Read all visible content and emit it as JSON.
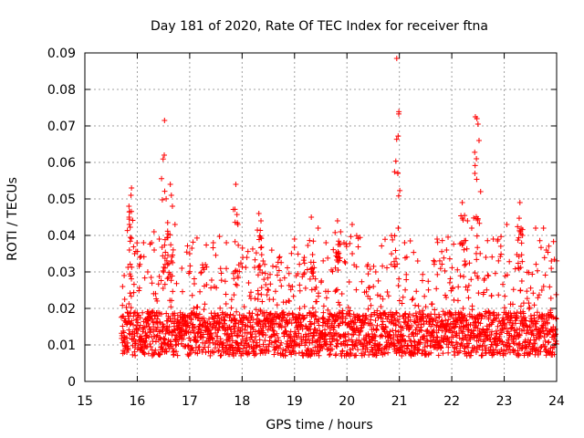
{
  "chart_data": {
    "type": "scatter",
    "title": "Day 181 of 2020, Rate Of TEC Index for receiver ftna",
    "xlabel": "GPS time / hours",
    "ylabel": "ROTI / TECUs",
    "xlim": [
      15,
      24
    ],
    "ylim": [
      0,
      0.09
    ],
    "xticks": [
      "15",
      "16",
      "17",
      "18",
      "19",
      "20",
      "21",
      "22",
      "23",
      "24"
    ],
    "yticks": [
      "0",
      "0.01",
      "0.02",
      "0.03",
      "0.04",
      "0.05",
      "0.06",
      "0.07",
      "0.08",
      "0.09"
    ],
    "grid": true,
    "marker": "+",
    "color": "#ff0000",
    "x_start": 15.7,
    "x_end": 24.0,
    "approx_point_count": 2600,
    "bulk_range": [
      0.005,
      0.035
    ],
    "baseline_typical": 0.013,
    "series": [
      {
        "name": "ROTI",
        "points": [
          [
            15.72,
            0.026
          ],
          [
            15.75,
            0.029
          ],
          [
            15.85,
            0.043
          ],
          [
            15.88,
            0.051
          ],
          [
            15.89,
            0.053
          ],
          [
            15.95,
            0.035
          ],
          [
            16.05,
            0.034
          ],
          [
            16.12,
            0.038
          ],
          [
            16.2,
            0.03
          ],
          [
            16.32,
            0.041
          ],
          [
            16.42,
            0.039
          ],
          [
            16.52,
            0.0715
          ],
          [
            16.58,
            0.032
          ],
          [
            16.63,
            0.054
          ],
          [
            16.65,
            0.051
          ],
          [
            16.67,
            0.048
          ],
          [
            16.72,
            0.043
          ],
          [
            16.85,
            0.031
          ],
          [
            17.0,
            0.035
          ],
          [
            17.3,
            0.032
          ],
          [
            17.45,
            0.038
          ],
          [
            17.7,
            0.038
          ],
          [
            17.88,
            0.054
          ],
          [
            17.92,
            0.043
          ],
          [
            18.32,
            0.046
          ],
          [
            18.36,
            0.044
          ],
          [
            18.4,
            0.033
          ],
          [
            18.5,
            0.025
          ],
          [
            18.9,
            0.022
          ],
          [
            19.1,
            0.02
          ],
          [
            19.32,
            0.045
          ],
          [
            19.45,
            0.042
          ],
          [
            19.6,
            0.038
          ],
          [
            19.82,
            0.044
          ],
          [
            19.88,
            0.041
          ],
          [
            20.1,
            0.043
          ],
          [
            20.4,
            0.032
          ],
          [
            20.55,
            0.03
          ],
          [
            20.95,
            0.0885
          ],
          [
            20.97,
            0.057
          ],
          [
            20.98,
            0.042
          ],
          [
            21.1,
            0.038
          ],
          [
            21.35,
            0.033
          ],
          [
            21.72,
            0.039
          ],
          [
            21.9,
            0.036
          ],
          [
            22.2,
            0.049
          ],
          [
            22.3,
            0.044
          ],
          [
            22.38,
            0.042
          ],
          [
            22.45,
            0.0725
          ],
          [
            22.48,
            0.072
          ],
          [
            22.5,
            0.0705
          ],
          [
            22.52,
            0.066
          ],
          [
            22.47,
            0.061
          ],
          [
            22.44,
            0.057
          ],
          [
            22.55,
            0.052
          ],
          [
            22.65,
            0.034
          ],
          [
            23.05,
            0.043
          ],
          [
            23.3,
            0.049
          ],
          [
            23.35,
            0.04
          ],
          [
            23.6,
            0.042
          ],
          [
            23.75,
            0.042
          ],
          [
            23.9,
            0.033
          ]
        ]
      }
    ],
    "spike_events": [
      {
        "x": 15.87,
        "y": 0.053
      },
      {
        "x": 16.52,
        "y": 0.0715
      },
      {
        "x": 16.63,
        "y": 0.054
      },
      {
        "x": 17.88,
        "y": 0.054
      },
      {
        "x": 18.33,
        "y": 0.046
      },
      {
        "x": 19.32,
        "y": 0.045
      },
      {
        "x": 19.82,
        "y": 0.044
      },
      {
        "x": 20.95,
        "y": 0.0885
      },
      {
        "x": 22.22,
        "y": 0.05
      },
      {
        "x": 22.47,
        "y": 0.073
      },
      {
        "x": 23.3,
        "y": 0.049
      }
    ]
  }
}
